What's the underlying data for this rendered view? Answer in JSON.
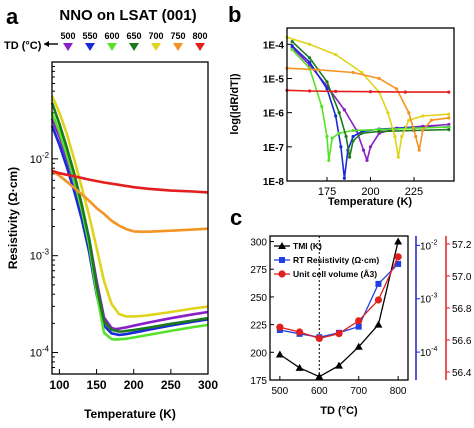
{
  "panel_labels": {
    "a": "a",
    "b": "b",
    "c": "c"
  },
  "chart_data": [
    {
      "id": "a",
      "type": "line",
      "title": "NNO on LSAT (001)",
      "xlabel": "Temperature (K)",
      "ylabel": "Resistivity (Ω·cm)",
      "xlim": [
        90,
        300
      ],
      "ylim": [
        6e-05,
        0.1
      ],
      "yscale": "log",
      "x_ticks": [
        100,
        150,
        200,
        250,
        300
      ],
      "y_ticks": [
        {
          "value": 0.0001,
          "label": "10-4"
        },
        {
          "value": 0.001,
          "label": "10-3"
        },
        {
          "value": 0.01,
          "label": "10-2"
        }
      ],
      "td_marker_label": "TD (°C)",
      "series": [
        {
          "name": "500",
          "color": "#8a1ec9",
          "x": [
            90,
            100,
            110,
            120,
            130,
            140,
            150,
            160,
            170,
            175,
            180,
            190,
            200,
            220,
            250,
            280,
            300
          ],
          "y": [
            0.026,
            0.017,
            0.01,
            0.0058,
            0.0031,
            0.0015,
            0.00055,
            0.00023,
            0.00018,
            0.000175,
            0.000176,
            0.000182,
            0.000189,
            0.000204,
            0.000226,
            0.000248,
            0.000262
          ]
        },
        {
          "name": "550",
          "color": "#1a2ad6",
          "x": [
            90,
            100,
            110,
            120,
            130,
            140,
            150,
            160,
            170,
            180,
            185,
            190,
            200,
            220,
            250,
            280,
            300
          ],
          "y": [
            0.022,
            0.014,
            0.0082,
            0.0046,
            0.0024,
            0.0011,
            0.0004,
            0.00019,
            0.000158,
            0.000152,
            0.000153,
            0.000155,
            0.00016,
            0.000172,
            0.00019,
            0.000208,
            0.00022
          ]
        },
        {
          "name": "600",
          "color": "#55e22a",
          "x": [
            90,
            100,
            110,
            120,
            130,
            140,
            150,
            160,
            170,
            175,
            180,
            190,
            200,
            220,
            250,
            280,
            300
          ],
          "y": [
            0.03,
            0.019,
            0.011,
            0.006,
            0.003,
            0.0013,
            0.00042,
            0.00016,
            0.000138,
            0.000136,
            0.000137,
            0.000139,
            0.000143,
            0.000152,
            0.000167,
            0.000183,
            0.000193
          ]
        },
        {
          "name": "650",
          "color": "#1c7a1c",
          "x": [
            90,
            100,
            110,
            120,
            130,
            140,
            150,
            160,
            170,
            180,
            185,
            190,
            200,
            220,
            250,
            280,
            300
          ],
          "y": [
            0.038,
            0.023,
            0.013,
            0.007,
            0.0034,
            0.0015,
            0.00049,
            0.00021,
            0.000172,
            0.000165,
            0.000165,
            0.000167,
            0.000171,
            0.000181,
            0.000198,
            0.000214,
            0.000226
          ]
        },
        {
          "name": "700",
          "color": "#e0d31c",
          "x": [
            90,
            100,
            110,
            120,
            130,
            140,
            150,
            160,
            170,
            180,
            190,
            200,
            210,
            220,
            250,
            280,
            300
          ],
          "y": [
            0.045,
            0.03,
            0.018,
            0.0098,
            0.0051,
            0.0026,
            0.0012,
            0.00055,
            0.00032,
            0.00025,
            0.000236,
            0.000236,
            0.000238,
            0.000243,
            0.000262,
            0.000285,
            0.000298
          ]
        },
        {
          "name": "750",
          "color": "#f39423",
          "x": [
            90,
            100,
            110,
            120,
            130,
            140,
            150,
            160,
            170,
            180,
            190,
            200,
            210,
            220,
            250,
            280,
            300
          ],
          "y": [
            0.0075,
            0.0067,
            0.0058,
            0.005,
            0.0043,
            0.0037,
            0.0031,
            0.0027,
            0.0023,
            0.00205,
            0.00188,
            0.00178,
            0.00177,
            0.00177,
            0.00181,
            0.00186,
            0.0019
          ]
        },
        {
          "name": "800",
          "color": "#e41e1e",
          "x": [
            90,
            100,
            120,
            140,
            160,
            180,
            200,
            220,
            250,
            280,
            300
          ],
          "y": [
            0.0075,
            0.0071,
            0.0066,
            0.0061,
            0.0057,
            0.0054,
            0.0051,
            0.0049,
            0.0047,
            0.0046,
            0.0045
          ]
        }
      ]
    },
    {
      "id": "b",
      "type": "line",
      "xlabel": "Temperature (K)",
      "ylabel": "log(|dR/dT|)",
      "xlim": [
        152,
        248
      ],
      "ylim": [
        1e-08,
        0.0003
      ],
      "yscale": "log",
      "x_ticks": [
        175,
        200,
        225
      ],
      "y_ticks": [
        {
          "value": 1e-08,
          "label": "1E-8"
        },
        {
          "value": 1e-07,
          "label": "1E-7"
        },
        {
          "value": 1e-06,
          "label": "1E-6"
        },
        {
          "value": 1e-05,
          "label": "1E-5"
        },
        {
          "value": 0.0001,
          "label": "1E-4"
        }
      ],
      "series": [
        {
          "name": "500",
          "color": "#8a1ec9",
          "x": [
            155,
            165,
            175,
            185,
            192,
            196,
            198,
            200,
            205,
            215,
            230,
            245
          ],
          "y": [
            8e-05,
            2.5e-05,
            6e-06,
            1.2e-06,
            3e-07,
            8e-08,
            4e-08,
            1e-07,
            2.5e-07,
            3.5e-07,
            4e-07,
            4.5e-07
          ]
        },
        {
          "name": "550",
          "color": "#1a2ad6",
          "x": [
            155,
            165,
            175,
            180,
            183,
            185,
            187,
            190,
            195,
            205,
            220,
            245
          ],
          "y": [
            9e-05,
            3e-05,
            5e-06,
            8e-07,
            1e-07,
            1.2e-08,
            8e-08,
            2e-07,
            2.8e-07,
            3.3e-07,
            3.6e-07,
            3.8e-07
          ]
        },
        {
          "name": "600",
          "color": "#55e22a",
          "x": [
            155,
            165,
            172,
            175,
            176,
            178,
            182,
            190,
            205,
            225,
            245
          ],
          "y": [
            7e-05,
            2e-05,
            1.5e-06,
            2e-07,
            4e-08,
            1.8e-07,
            2.5e-07,
            3e-07,
            3.2e-07,
            3.5e-07,
            3.8e-07
          ]
        },
        {
          "name": "650",
          "color": "#1c7a1c",
          "x": [
            155,
            165,
            175,
            182,
            186,
            188,
            190,
            195,
            205,
            225,
            245
          ],
          "y": [
            0.00012,
            4e-05,
            8e-06,
            1e-06,
            2e-07,
            5e-08,
            1.5e-07,
            2.5e-07,
            2.8e-07,
            3e-07,
            3.2e-07
          ]
        },
        {
          "name": "700",
          "color": "#e0d31c",
          "x": [
            152,
            165,
            180,
            195,
            205,
            210,
            214,
            216,
            218,
            222,
            230,
            245
          ],
          "y": [
            0.00016,
            0.0001,
            5e-05,
            1.5e-05,
            4e-06,
            1e-06,
            2e-07,
            5e-08,
            2e-07,
            6e-07,
            8e-07,
            9e-07
          ]
        },
        {
          "name": "750",
          "color": "#f39423",
          "x": [
            152,
            170,
            190,
            205,
            215,
            222,
            226,
            228,
            230,
            235,
            245
          ],
          "y": [
            2e-05,
            1.8e-05,
            1.5e-05,
            1e-05,
            5e-06,
            1e-06,
            2e-07,
            8e-08,
            3e-07,
            6e-07,
            7e-07
          ]
        },
        {
          "name": "800",
          "color": "#e41e1e",
          "x": [
            152,
            165,
            180,
            200,
            220,
            245
          ],
          "y": [
            4.5e-06,
            4.3e-06,
            4.2e-06,
            4.1e-06,
            4e-06,
            4e-06
          ]
        }
      ]
    },
    {
      "id": "c",
      "type": "line",
      "xlabel": "TD (°C)",
      "xlim": [
        475,
        825
      ],
      "x_ticks": [
        500,
        600,
        700,
        800
      ],
      "vline_x": 600,
      "axes": {
        "left": {
          "ylim": [
            175,
            305
          ],
          "ticks": [
            175,
            200,
            225,
            250,
            275,
            300
          ]
        },
        "mid": {
          "scale": "log",
          "ylim": [
            3e-05,
            0.015
          ],
          "ticks": [
            {
              "value": 0.0001,
              "label": "10-4"
            },
            {
              "value": 0.001,
              "label": "10-3"
            },
            {
              "value": 0.01,
              "label": "10-2"
            }
          ],
          "color": "#1f1fd6"
        },
        "right": {
          "ylim": [
            56.35,
            57.25
          ],
          "ticks": [
            56.4,
            56.6,
            56.8,
            57.0,
            57.2
          ],
          "color": "#e01f1f"
        }
      },
      "legend": [
        {
          "label": "TMI (K)",
          "color": "#000000",
          "marker": "triangle"
        },
        {
          "label": "RT Resistivity (Ω·cm)",
          "color": "#1f3fe0",
          "marker": "square"
        },
        {
          "label": "Unit cell volume (Å3)",
          "color": "#e01f1f",
          "marker": "circle"
        }
      ],
      "series": [
        {
          "name": "TMI (K)",
          "axis": "left",
          "color": "#000000",
          "marker": "triangle",
          "x": [
            500,
            550,
            600,
            650,
            700,
            750,
            800
          ],
          "y": [
            198,
            186,
            178,
            188,
            205,
            225,
            300
          ]
        },
        {
          "name": "RT Resistivity (Ω·cm)",
          "axis": "mid",
          "color": "#1f3fe0",
          "marker": "square",
          "x": [
            500,
            550,
            600,
            650,
            700,
            750,
            800
          ],
          "y": [
            0.00026,
            0.00022,
            0.00019,
            0.00023,
            0.0003,
            0.0019,
            0.0045
          ]
        },
        {
          "name": "Unit cell volume (Å3)",
          "axis": "right",
          "color": "#e01f1f",
          "marker": "circle",
          "x": [
            500,
            550,
            600,
            650,
            700,
            750,
            800
          ],
          "y": [
            56.68,
            56.65,
            56.61,
            56.64,
            56.72,
            56.85,
            57.12
          ]
        }
      ]
    }
  ]
}
